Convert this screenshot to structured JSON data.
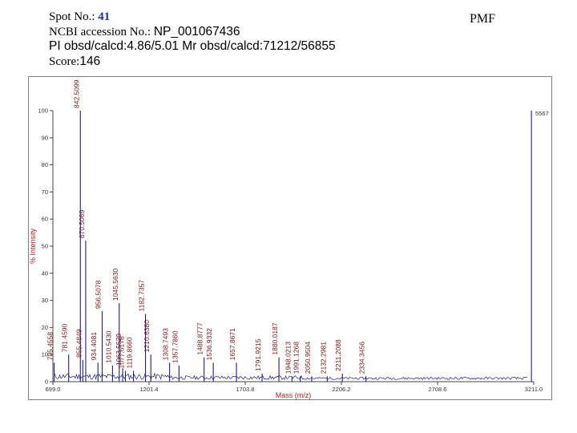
{
  "header": {
    "spot_label": "Spot No.:",
    "spot_value": "41",
    "accession_label": "NCBI accession No.:",
    "accession_value": "NP_001067436",
    "pi_mr": "PI obsd/calcd:4.86/5.01   Mr obsd/calcd:71212/56855",
    "score_label": "Score:",
    "score_value": "146",
    "pmf": "PMF"
  },
  "colors": {
    "spectrum": "#1c1c8a",
    "peak_labels": "#7a1414",
    "axis_title": "#c01818",
    "accent": "#1f2fa8"
  },
  "chart_data": {
    "type": "line",
    "title": "",
    "xlabel": "Mass (m/z)",
    "ylabel": "% Intensity",
    "xlim": [
      699.0,
      3211.0
    ],
    "ylim": [
      0,
      100
    ],
    "x_ticks": [
      "699.0",
      "1201.4",
      "1703.8",
      "2206.2",
      "2708.6",
      "3211.0"
    ],
    "x_tick_values": [
      699.0,
      1201.4,
      1703.8,
      2206.2,
      2708.6,
      3211.0
    ],
    "y_ticks": [
      0,
      10,
      20,
      30,
      40,
      50,
      60,
      70,
      80,
      90,
      100
    ],
    "max_intensity_label": "5567",
    "peaks": [
      {
        "mz": 705.4558,
        "label": "705.4558",
        "intensity": 7
      },
      {
        "mz": 781.459,
        "label": "781.4590",
        "intensity": 10
      },
      {
        "mz": 842.5099,
        "label": "842.5099",
        "intensity": 100
      },
      {
        "mz": 855.4849,
        "label": "855.4849",
        "intensity": 8
      },
      {
        "mz": 870.5069,
        "label": "870.5069",
        "intensity": 52
      },
      {
        "mz": 934.4081,
        "label": "934.4081",
        "intensity": 7
      },
      {
        "mz": 956.5078,
        "label": "956.5078",
        "intensity": 26
      },
      {
        "mz": 1010.543,
        "label": "1010.5430",
        "intensity": 6
      },
      {
        "mz": 1045.563,
        "label": "1045.5630",
        "intensity": 29
      },
      {
        "mz": 1063.5529,
        "label": "1063.5529",
        "intensity": 5
      },
      {
        "mz": 1077.6178,
        "label": "1077.6178",
        "intensity": 4
      },
      {
        "mz": 1119.866,
        "label": "1119.8660",
        "intensity": 4
      },
      {
        "mz": 1182.7357,
        "label": "1182.7357",
        "intensity": 25
      },
      {
        "mz": 1210.638,
        "label": "1210.6380",
        "intensity": 10
      },
      {
        "mz": 1308.7493,
        "label": "1308.7493",
        "intensity": 7
      },
      {
        "mz": 1357.786,
        "label": "1357.7860",
        "intensity": 6
      },
      {
        "mz": 1488.8777,
        "label": "1488.8777",
        "intensity": 9
      },
      {
        "mz": 1536.9332,
        "label": "1536.9332",
        "intensity": 7
      },
      {
        "mz": 1657.8671,
        "label": "1657.8671",
        "intensity": 7
      },
      {
        "mz": 1791.9215,
        "label": "1791.9215",
        "intensity": 3
      },
      {
        "mz": 1880.0187,
        "label": "1880.0187",
        "intensity": 9
      },
      {
        "mz": 1948.0213,
        "label": "1948.0213",
        "intensity": 2
      },
      {
        "mz": 1991.1268,
        "label": "1991.1268",
        "intensity": 2
      },
      {
        "mz": 2050.9504,
        "label": "2050.9504",
        "intensity": 2
      },
      {
        "mz": 2132.2981,
        "label": "2132.2981",
        "intensity": 2
      },
      {
        "mz": 2211.2088,
        "label": "2211.2088",
        "intensity": 3
      },
      {
        "mz": 2334.3456,
        "label": "2334.3456",
        "intensity": 2
      },
      {
        "mz": 3199.0,
        "label": "",
        "intensity": 100
      }
    ]
  }
}
